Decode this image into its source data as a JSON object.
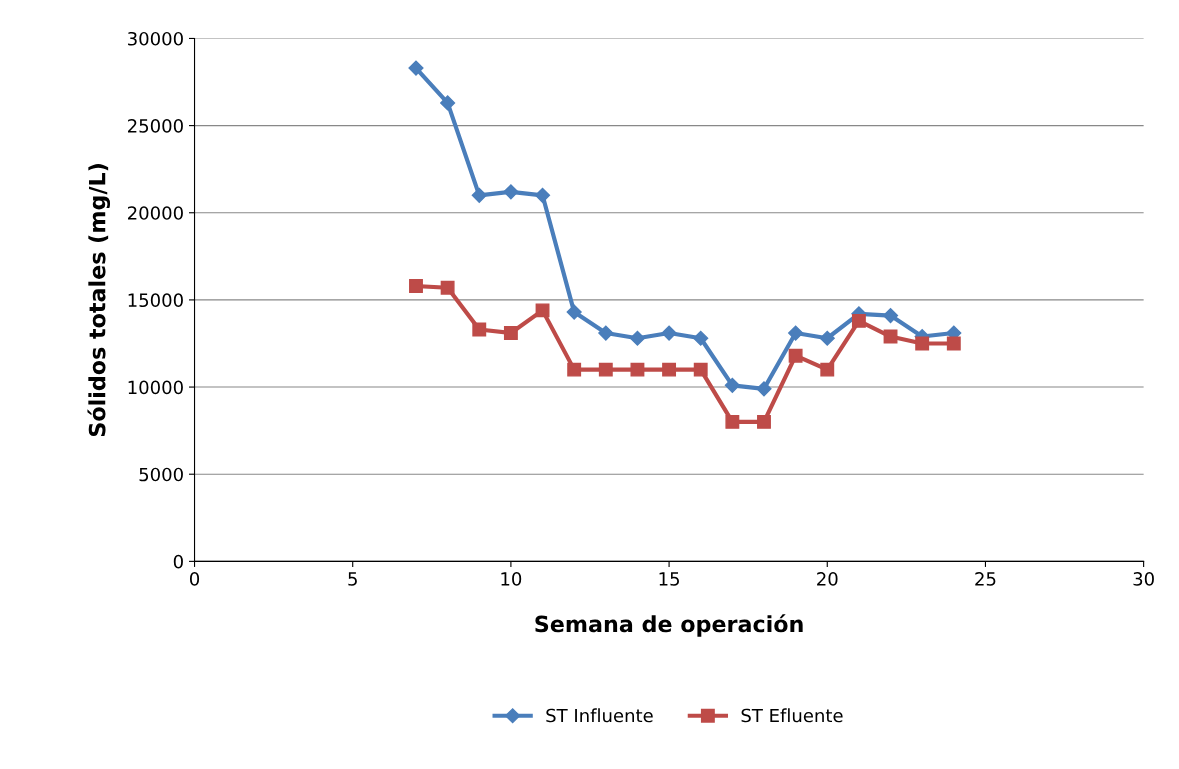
{
  "chart_data": {
    "type": "line",
    "xlabel": "Semana de operación",
    "ylabel": "Sólidos totales (mg/L)",
    "x": [
      7,
      8,
      9,
      10,
      11,
      12,
      13,
      14,
      15,
      16,
      17,
      18,
      19,
      20,
      21,
      22,
      23,
      24
    ],
    "series": [
      {
        "name": "ST Influente",
        "color": "#4a7ebb",
        "marker": "diamond",
        "values": [
          28300,
          26300,
          21000,
          21200,
          21000,
          14300,
          13100,
          12800,
          13100,
          12800,
          10100,
          9900,
          13100,
          12800,
          14200,
          14100,
          12900,
          13100
        ]
      },
      {
        "name": "ST Efluente",
        "color": "#be4b48",
        "marker": "square",
        "values": [
          15800,
          15700,
          13300,
          13100,
          14400,
          11000,
          11000,
          11000,
          11000,
          11000,
          8000,
          8000,
          11800,
          11000,
          13800,
          12900,
          12500,
          12500
        ]
      }
    ],
    "xlim": [
      0,
      30
    ],
    "xticks": [
      0,
      5,
      10,
      15,
      20,
      25,
      30
    ],
    "ylim": [
      0,
      30000
    ],
    "yticks": [
      0,
      5000,
      10000,
      15000,
      20000,
      25000,
      30000
    ],
    "grid": "y",
    "legend": "bottom",
    "line_style": "solid"
  }
}
